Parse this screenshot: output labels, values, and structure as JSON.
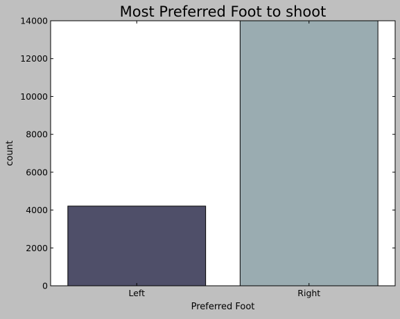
{
  "chart_data": {
    "type": "bar",
    "title": "Most Preferred Foot to shoot",
    "xlabel": "Preferred Foot",
    "ylabel": "count",
    "categories": [
      "Left",
      "Right"
    ],
    "values": [
      4210,
      14000
    ],
    "ylim": [
      0,
      14000
    ],
    "yticks": [
      0,
      2000,
      4000,
      6000,
      8000,
      10000,
      12000,
      14000
    ],
    "ytick_labels": [
      "0",
      "2000",
      "4000",
      "6000",
      "8000",
      "10000",
      "12000",
      "14000"
    ],
    "bar_colors": [
      "#4f4f69",
      "#9aacb1"
    ],
    "grid": false,
    "legend": "none"
  },
  "colors": {
    "figure_background": "#bfbfbf",
    "plot_background": "#ffffff",
    "bar_edge": "#000000"
  }
}
